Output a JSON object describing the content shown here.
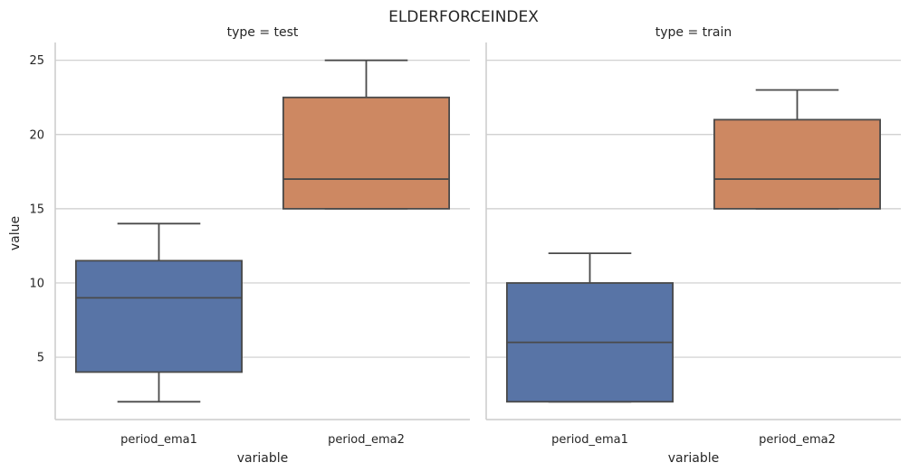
{
  "chart_data": {
    "type": "box",
    "title": "ELDERFORCEINDEX",
    "xlabel": "variable",
    "ylabel": "value",
    "ylim": [
      0.8,
      26.2
    ],
    "yticks": [
      5,
      10,
      15,
      20,
      25
    ],
    "grid": true,
    "categories": [
      "period_ema1",
      "period_ema2"
    ],
    "colors": [
      "#5874a6",
      "#cd8862"
    ],
    "facets": [
      {
        "title": "type = test",
        "boxes": [
          {
            "category": "period_ema1",
            "whisker_low": 2,
            "q1": 4,
            "median": 9,
            "q3": 11.5,
            "whisker_high": 14
          },
          {
            "category": "period_ema2",
            "whisker_low": 15,
            "q1": 15,
            "median": 17,
            "q3": 22.5,
            "whisker_high": 25
          }
        ]
      },
      {
        "title": "type = train",
        "boxes": [
          {
            "category": "period_ema1",
            "whisker_low": 2,
            "q1": 2,
            "median": 6,
            "q3": 10,
            "whisker_high": 12
          },
          {
            "category": "period_ema2",
            "whisker_low": 15,
            "q1": 15,
            "median": 17,
            "q3": 21,
            "whisker_high": 23
          }
        ]
      }
    ]
  }
}
